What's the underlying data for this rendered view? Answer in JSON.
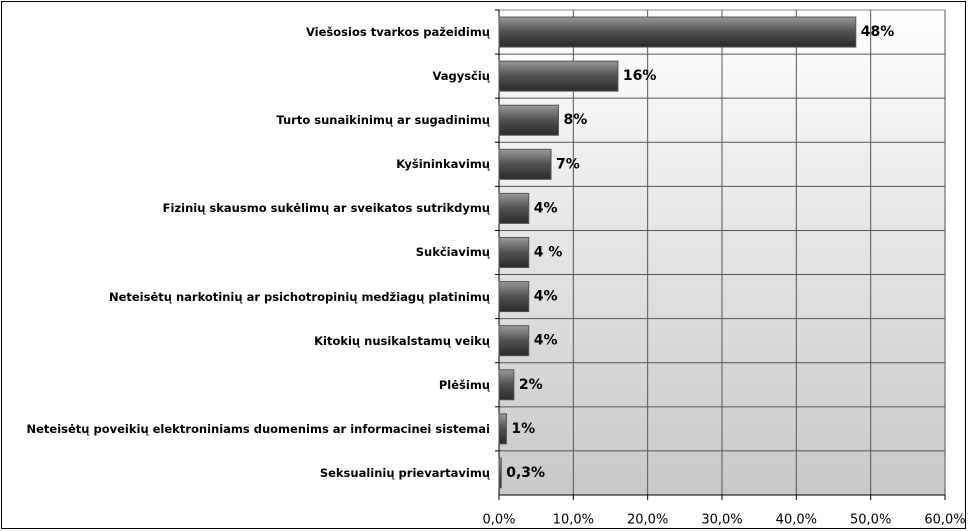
{
  "chart_data": {
    "type": "bar",
    "orientation": "horizontal",
    "categories": [
      "Viešosios tvarkos pažeidimų",
      "Vagysčių",
      "Turto sunaikinimų ar sugadinimų",
      "Kyšininkavimų",
      "Fizinių skausmo sukėlimų ar sveikatos sutrikdymų",
      "Sukčiavimų",
      "Neteisėtų narkotinių ar psichotropinių medžiagų platinimų",
      "Kitokių nusikalstamų veikų",
      "Plėšimų",
      "Neteisėtų poveikių elektroniniams duomenims ar informacinei sistemai",
      "Seksualinių prievartavimų"
    ],
    "values": [
      48,
      16,
      8,
      7,
      4,
      4,
      4,
      4,
      2,
      1,
      0.3
    ],
    "value_labels": [
      "48%",
      "16%",
      "8%",
      "7%",
      "4%",
      "4 %",
      "4%",
      "4%",
      "2%",
      "1%",
      "0,3%"
    ],
    "color": "#555555",
    "xlim": [
      0,
      60
    ],
    "xticks": [
      {
        "value": 0,
        "label": "0,0%"
      },
      {
        "value": 10,
        "label": "10,0%"
      },
      {
        "value": 20,
        "label": "20,0%"
      },
      {
        "value": 30,
        "label": "30,0%"
      },
      {
        "value": 40,
        "label": "40,0%"
      },
      {
        "value": 50,
        "label": "50,0%"
      },
      {
        "value": 60,
        "label": "60,0%"
      }
    ],
    "grid": true
  }
}
